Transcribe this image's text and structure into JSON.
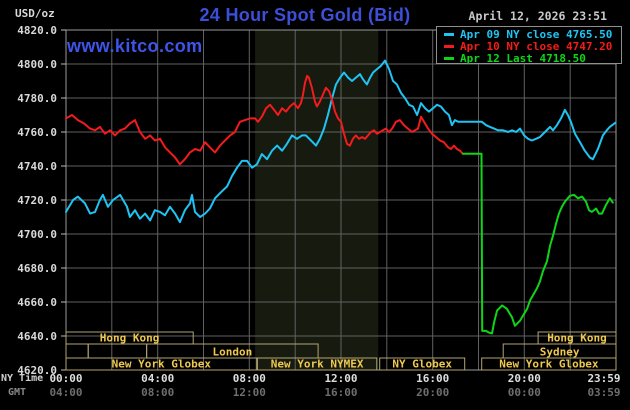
{
  "header": {
    "unit_label": "USD/oz",
    "watermark": "www.kitco.com",
    "title": "24 Hour Spot Gold (Bid)",
    "timestamp": "April 12, 2026 23:51",
    "title_color": "#3b4fd8",
    "watermark_color": "#3d55e8"
  },
  "axes": {
    "x": {
      "row1_label": "NY Time",
      "row2_label": "GMT",
      "tick_hours": [
        0,
        4,
        8,
        12,
        16,
        20,
        23.98
      ],
      "ny_labels": [
        "00:00",
        "04:00",
        "08:00",
        "12:00",
        "16:00",
        "20:00",
        "23:59"
      ],
      "gmt_labels": [
        "04:00",
        "08:00",
        "12:00",
        "16:00",
        "20:00",
        "00:00",
        "03:59"
      ],
      "gridline_step_hours": 2,
      "range_hours": [
        0,
        24
      ]
    },
    "y": {
      "min": 4620,
      "max": 4820,
      "step": 20,
      "labels": [
        "4820.0",
        "4800.0",
        "4780.0",
        "4760.0",
        "4740.0",
        "4720.0",
        "4700.0",
        "4680.0",
        "4660.0",
        "4640.0",
        "4620.0"
      ]
    }
  },
  "highlight_band": {
    "start_hour": 8.25,
    "end_hour": 13.62,
    "color": "#161a0f"
  },
  "sessions": {
    "border_color": "#b2a572",
    "label_color": "#eec84f",
    "rows": [
      {
        "boxes": [
          {
            "label": "Hong Kong",
            "start": 0,
            "end": 5.55
          },
          {
            "label": "Hong Kong",
            "start": 20.6,
            "end": 24
          }
        ]
      },
      {
        "boxes": [
          {
            "label": "",
            "start": 0,
            "end": 0.97
          },
          {
            "label": "",
            "start": 0.97,
            "end": 3.52
          },
          {
            "label": "London",
            "start": 3.52,
            "end": 11.0
          },
          {
            "label": "Sydney",
            "start": 19.08,
            "end": 24
          }
        ]
      },
      {
        "boxes": [
          {
            "label": "New York Globex",
            "start": 0,
            "end": 8.32
          },
          {
            "label": "New York NYMEX",
            "start": 8.35,
            "end": 13.56
          },
          {
            "label": "NY Globex",
            "start": 13.69,
            "end": 17.4
          },
          {
            "label": "New York Globex",
            "start": 18.14,
            "end": 24
          }
        ]
      }
    ]
  },
  "chart_data": {
    "type": "line",
    "title": "24 Hour Spot Gold (Bid)",
    "ylabel": "USD/oz",
    "x_unit": "hours since 00:00 NY time",
    "ylim": [
      4620,
      4820
    ],
    "xlim": [
      0,
      24
    ],
    "grid": true,
    "legend_position": "top-right",
    "series": [
      {
        "name": "Apr 09 NY close 4765.50",
        "close": 4765.5,
        "color": "#1fc4f4",
        "points": [
          [
            0,
            4713
          ],
          [
            0.31,
            4720
          ],
          [
            0.52,
            4722
          ],
          [
            0.83,
            4718
          ],
          [
            1.05,
            4712
          ],
          [
            1.27,
            4713
          ],
          [
            1.48,
            4720
          ],
          [
            1.61,
            4723
          ],
          [
            1.83,
            4716
          ],
          [
            2.05,
            4720
          ],
          [
            2.36,
            4723
          ],
          [
            2.66,
            4716
          ],
          [
            2.79,
            4710
          ],
          [
            3.01,
            4714
          ],
          [
            3.23,
            4709
          ],
          [
            3.45,
            4712
          ],
          [
            3.67,
            4708
          ],
          [
            3.88,
            4714
          ],
          [
            4.1,
            4713
          ],
          [
            4.32,
            4711
          ],
          [
            4.54,
            4716
          ],
          [
            4.76,
            4712
          ],
          [
            4.97,
            4707
          ],
          [
            5.19,
            4714
          ],
          [
            5.41,
            4718
          ],
          [
            5.5,
            4723
          ],
          [
            5.63,
            4713
          ],
          [
            5.85,
            4710
          ],
          [
            6.07,
            4712
          ],
          [
            6.28,
            4715
          ],
          [
            6.5,
            4721
          ],
          [
            6.72,
            4724
          ],
          [
            7.03,
            4728
          ],
          [
            7.24,
            4734
          ],
          [
            7.46,
            4739
          ],
          [
            7.68,
            4743
          ],
          [
            7.9,
            4743
          ],
          [
            8.12,
            4739
          ],
          [
            8.33,
            4741
          ],
          [
            8.55,
            4747
          ],
          [
            8.77,
            4744
          ],
          [
            8.99,
            4749
          ],
          [
            9.21,
            4752
          ],
          [
            9.43,
            4749
          ],
          [
            9.64,
            4753
          ],
          [
            9.86,
            4758
          ],
          [
            10.08,
            4756
          ],
          [
            10.3,
            4758
          ],
          [
            10.47,
            4758
          ],
          [
            10.69,
            4755
          ],
          [
            10.91,
            4752
          ],
          [
            11.08,
            4756
          ],
          [
            11.26,
            4762
          ],
          [
            11.43,
            4770
          ],
          [
            11.61,
            4780
          ],
          [
            11.78,
            4788
          ],
          [
            11.96,
            4792
          ],
          [
            12.13,
            4795
          ],
          [
            12.31,
            4792
          ],
          [
            12.48,
            4790
          ],
          [
            12.65,
            4792
          ],
          [
            12.83,
            4794
          ],
          [
            12.96,
            4791
          ],
          [
            13.13,
            4788
          ],
          [
            13.27,
            4792
          ],
          [
            13.4,
            4795
          ],
          [
            13.57,
            4797
          ],
          [
            13.75,
            4799
          ],
          [
            13.92,
            4802
          ],
          [
            14.1,
            4797
          ],
          [
            14.27,
            4790
          ],
          [
            14.44,
            4788
          ],
          [
            14.62,
            4783
          ],
          [
            14.79,
            4780
          ],
          [
            14.97,
            4776
          ],
          [
            15.14,
            4775
          ],
          [
            15.32,
            4770
          ],
          [
            15.49,
            4777
          ],
          [
            15.67,
            4774
          ],
          [
            15.84,
            4772
          ],
          [
            16.02,
            4774
          ],
          [
            16.19,
            4776
          ],
          [
            16.36,
            4775
          ],
          [
            16.54,
            4772
          ],
          [
            16.71,
            4770
          ],
          [
            16.84,
            4764
          ],
          [
            16.97,
            4767
          ],
          [
            17.11,
            4766
          ],
          [
            18.15,
            4766
          ],
          [
            18.33,
            4764
          ],
          [
            18.5,
            4763
          ],
          [
            18.68,
            4762
          ],
          [
            18.85,
            4761
          ],
          [
            19.07,
            4761
          ],
          [
            19.29,
            4760
          ],
          [
            19.46,
            4761
          ],
          [
            19.64,
            4760
          ],
          [
            19.81,
            4762
          ],
          [
            19.99,
            4758
          ],
          [
            20.16,
            4756
          ],
          [
            20.33,
            4755
          ],
          [
            20.51,
            4756
          ],
          [
            20.68,
            4757
          ],
          [
            20.9,
            4760
          ],
          [
            21.12,
            4763
          ],
          [
            21.25,
            4761
          ],
          [
            21.42,
            4764
          ],
          [
            21.6,
            4768
          ],
          [
            21.77,
            4773
          ],
          [
            21.9,
            4770
          ],
          [
            22.03,
            4766
          ],
          [
            22.21,
            4759
          ],
          [
            22.43,
            4754
          ],
          [
            22.64,
            4749
          ],
          [
            22.86,
            4745
          ],
          [
            22.99,
            4744
          ],
          [
            23.21,
            4750
          ],
          [
            23.43,
            4758
          ],
          [
            23.6,
            4761
          ],
          [
            23.73,
            4763
          ],
          [
            23.98,
            4765.5
          ]
        ]
      },
      {
        "name": "Apr 10 NY close 4747.20",
        "close": 4747.2,
        "color": "#f31b1b",
        "points": [
          [
            0,
            4768
          ],
          [
            0.26,
            4770
          ],
          [
            0.52,
            4767
          ],
          [
            0.79,
            4765
          ],
          [
            1.05,
            4762
          ],
          [
            1.27,
            4761
          ],
          [
            1.48,
            4763
          ],
          [
            1.7,
            4759
          ],
          [
            1.92,
            4761
          ],
          [
            2.14,
            4758
          ],
          [
            2.36,
            4761
          ],
          [
            2.57,
            4762
          ],
          [
            2.79,
            4765
          ],
          [
            3.01,
            4767
          ],
          [
            3.23,
            4760
          ],
          [
            3.45,
            4756
          ],
          [
            3.67,
            4758
          ],
          [
            3.88,
            4755
          ],
          [
            4.1,
            4756
          ],
          [
            4.32,
            4751
          ],
          [
            4.54,
            4748
          ],
          [
            4.76,
            4745
          ],
          [
            4.97,
            4741
          ],
          [
            5.19,
            4744
          ],
          [
            5.41,
            4748
          ],
          [
            5.63,
            4750
          ],
          [
            5.85,
            4749
          ],
          [
            6.07,
            4754
          ],
          [
            6.28,
            4751
          ],
          [
            6.5,
            4748
          ],
          [
            6.72,
            4752
          ],
          [
            6.94,
            4755
          ],
          [
            7.16,
            4758
          ],
          [
            7.37,
            4760
          ],
          [
            7.59,
            4766
          ],
          [
            7.81,
            4767
          ],
          [
            8.03,
            4768
          ],
          [
            8.25,
            4768
          ],
          [
            8.38,
            4766
          ],
          [
            8.55,
            4769
          ],
          [
            8.73,
            4774
          ],
          [
            8.9,
            4776
          ],
          [
            9.08,
            4773
          ],
          [
            9.25,
            4770
          ],
          [
            9.43,
            4774
          ],
          [
            9.6,
            4772
          ],
          [
            9.77,
            4775
          ],
          [
            9.95,
            4777
          ],
          [
            10.12,
            4774
          ],
          [
            10.25,
            4777
          ],
          [
            10.34,
            4782
          ],
          [
            10.43,
            4789
          ],
          [
            10.52,
            4793
          ],
          [
            10.6,
            4792
          ],
          [
            10.73,
            4786
          ],
          [
            10.86,
            4778
          ],
          [
            10.95,
            4775
          ],
          [
            11.08,
            4778
          ],
          [
            11.21,
            4782
          ],
          [
            11.34,
            4786
          ],
          [
            11.48,
            4784
          ],
          [
            11.61,
            4779
          ],
          [
            11.74,
            4772
          ],
          [
            11.87,
            4768
          ],
          [
            12,
            4766
          ],
          [
            12.13,
            4759
          ],
          [
            12.26,
            4753
          ],
          [
            12.39,
            4752
          ],
          [
            12.52,
            4756
          ],
          [
            12.65,
            4758
          ],
          [
            12.79,
            4756
          ],
          [
            12.92,
            4757
          ],
          [
            13.05,
            4756
          ],
          [
            13.18,
            4758
          ],
          [
            13.31,
            4760
          ],
          [
            13.44,
            4761
          ],
          [
            13.57,
            4759
          ],
          [
            13.7,
            4760
          ],
          [
            13.83,
            4761
          ],
          [
            13.96,
            4762
          ],
          [
            14.1,
            4760
          ],
          [
            14.23,
            4762
          ],
          [
            14.4,
            4766
          ],
          [
            14.57,
            4767
          ],
          [
            14.75,
            4764
          ],
          [
            14.92,
            4762
          ],
          [
            15.1,
            4760
          ],
          [
            15.23,
            4761
          ],
          [
            15.36,
            4762
          ],
          [
            15.49,
            4769
          ],
          [
            15.62,
            4766
          ],
          [
            15.8,
            4762
          ],
          [
            15.97,
            4759
          ],
          [
            16.15,
            4757
          ],
          [
            16.32,
            4755
          ],
          [
            16.49,
            4754
          ],
          [
            16.67,
            4751
          ],
          [
            16.8,
            4750
          ],
          [
            16.93,
            4752
          ],
          [
            17.06,
            4750
          ],
          [
            17.19,
            4749
          ],
          [
            17.32,
            4747.2
          ]
        ]
      },
      {
        "name": "Apr 12 Last 4718.50",
        "last": 4718.5,
        "color": "#0ed616",
        "points": [
          [
            17.32,
            4747.2
          ],
          [
            18.13,
            4747.2
          ],
          [
            18.16,
            4643
          ],
          [
            18.33,
            4643
          ],
          [
            18.46,
            4642
          ],
          [
            18.59,
            4641.5
          ],
          [
            18.68,
            4648
          ],
          [
            18.81,
            4655
          ],
          [
            19.03,
            4658
          ],
          [
            19.24,
            4656
          ],
          [
            19.46,
            4651
          ],
          [
            19.59,
            4646
          ],
          [
            19.81,
            4649
          ],
          [
            19.94,
            4652
          ],
          [
            20.12,
            4656
          ],
          [
            20.25,
            4661
          ],
          [
            20.38,
            4664
          ],
          [
            20.55,
            4668
          ],
          [
            20.68,
            4672
          ],
          [
            20.81,
            4678
          ],
          [
            20.99,
            4684
          ],
          [
            21.12,
            4693
          ],
          [
            21.25,
            4699
          ],
          [
            21.38,
            4706
          ],
          [
            21.51,
            4712
          ],
          [
            21.64,
            4716
          ],
          [
            21.77,
            4719
          ],
          [
            21.99,
            4722.5
          ],
          [
            22.17,
            4723
          ],
          [
            22.34,
            4721
          ],
          [
            22.52,
            4722
          ],
          [
            22.69,
            4719
          ],
          [
            22.82,
            4714
          ],
          [
            22.95,
            4713
          ],
          [
            23.13,
            4715
          ],
          [
            23.26,
            4712
          ],
          [
            23.39,
            4712
          ],
          [
            23.56,
            4717
          ],
          [
            23.73,
            4721
          ],
          [
            23.86,
            4718.5
          ]
        ]
      }
    ]
  }
}
